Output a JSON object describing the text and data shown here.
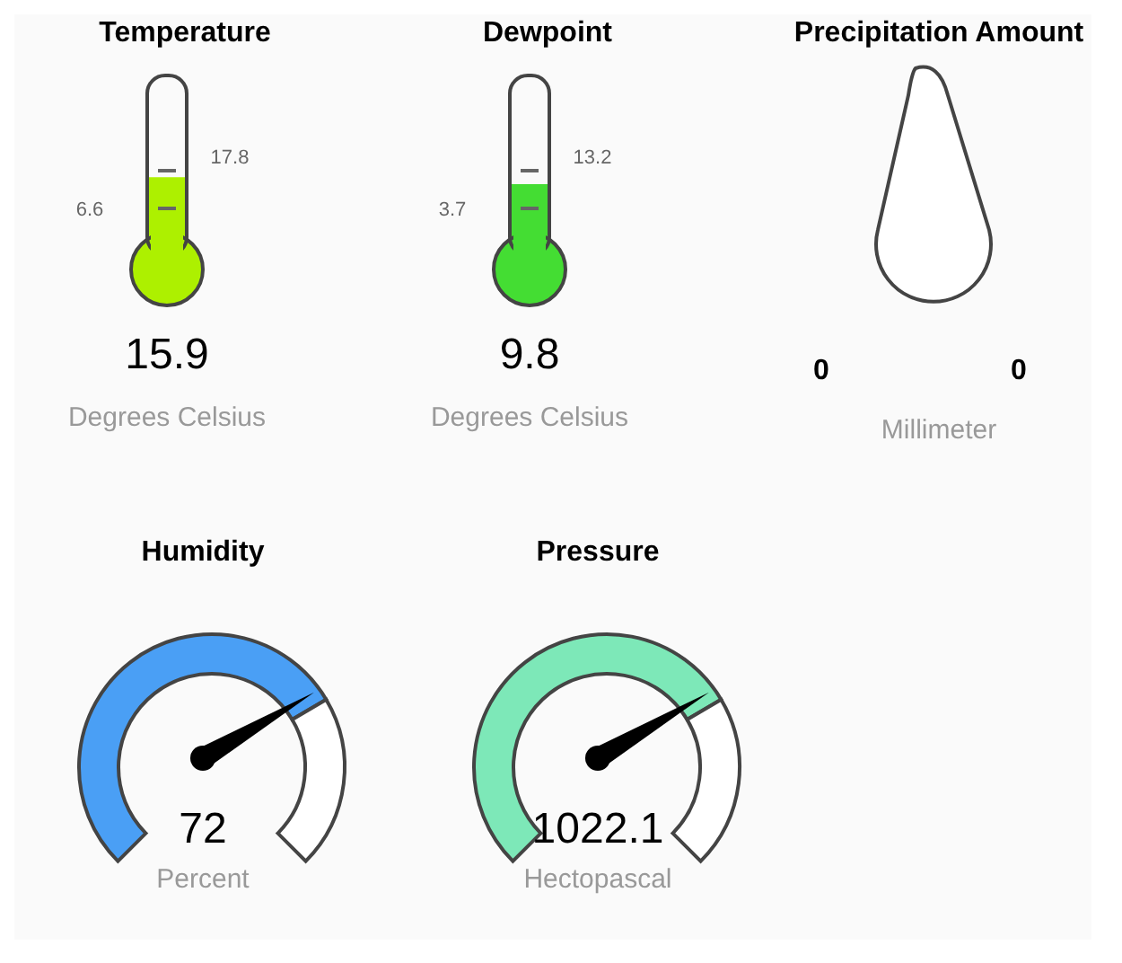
{
  "chart_data": [
    {
      "type": "other",
      "title": "Temperature",
      "values": [
        15.9
      ],
      "data_labels": true,
      "color": "#adf000",
      "annotations": [
        "6.6",
        "17.8"
      ],
      "ylabel": "Degrees Celsius"
    },
    {
      "type": "other",
      "title": "Dewpoint",
      "values": [
        9.8
      ],
      "data_labels": true,
      "color": "#44dd33",
      "annotations": [
        "3.7",
        "13.2"
      ],
      "ylabel": "Degrees Celsius"
    },
    {
      "type": "other",
      "title": "Precipitation Amount",
      "values": [
        0,
        0
      ],
      "data_labels": true,
      "ylabel": "Millimeter"
    },
    {
      "type": "donut",
      "title": "Humidity",
      "categories": [
        null,
        null
      ],
      "values": [
        72,
        28
      ],
      "colors": [
        "#4a9ff5",
        "#ffffff"
      ],
      "annotations": [
        "72"
      ],
      "ylabel": "Percent"
    },
    {
      "type": "donut",
      "title": "Pressure",
      "categories": [
        null,
        null
      ],
      "values": [
        72,
        28
      ],
      "colors": [
        "#7de8b8",
        "#ffffff"
      ],
      "annotations": [
        "1022.1"
      ],
      "ylabel": "Hectopascal"
    }
  ]
}
